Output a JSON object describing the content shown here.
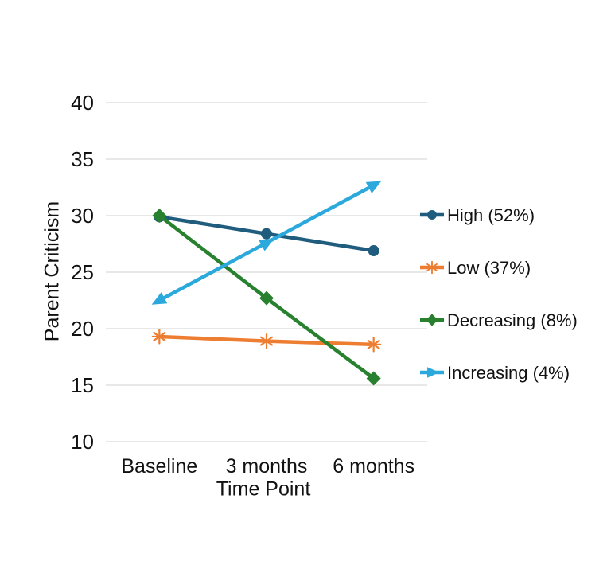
{
  "chart_data": {
    "type": "line",
    "title": "",
    "xlabel": "Time Point",
    "ylabel": "Parent Criticism",
    "categories": [
      "Baseline",
      "3 months",
      "6 months"
    ],
    "series": [
      {
        "name": "High (52%)",
        "color": "#1F5C7D",
        "marker": "circle",
        "values": [
          29.9,
          28.4,
          26.9
        ]
      },
      {
        "name": "Low (37%)",
        "color": "#ED7D31",
        "marker": "asterisk",
        "values": [
          19.3,
          18.9,
          18.6
        ]
      },
      {
        "name": "Decreasing (8%)",
        "color": "#27812E",
        "marker": "diamond",
        "values": [
          30.0,
          22.7,
          15.6
        ]
      },
      {
        "name": "Increasing (4%)",
        "color": "#2BA9DC",
        "marker": "triangle",
        "values": [
          22.5,
          27.6,
          32.7
        ]
      }
    ],
    "ylim": [
      10,
      40
    ],
    "yticks": [
      10,
      15,
      20,
      25,
      30,
      35,
      40
    ],
    "grid": "horizontal",
    "gridline_color": "#D9D9D9",
    "text_color": "#111111",
    "legend_position": "right"
  }
}
